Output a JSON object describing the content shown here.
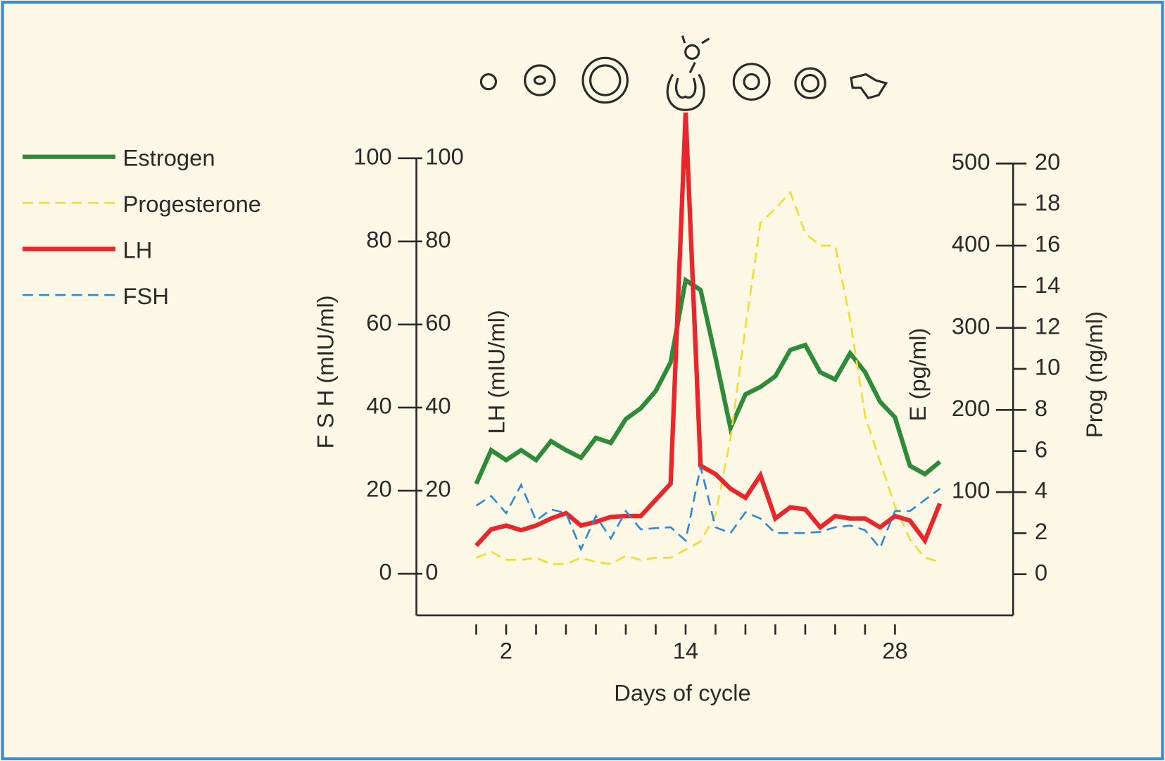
{
  "chart_data": {
    "type": "line",
    "xlabel": "Days of cycle",
    "x": [
      0,
      1,
      2,
      3,
      4,
      5,
      6,
      7,
      8,
      9,
      10,
      11,
      12,
      13,
      14,
      15,
      16,
      17,
      18,
      19,
      20,
      21,
      22,
      23,
      24,
      25,
      26,
      27,
      28,
      29,
      30,
      31
    ],
    "xlim": [
      -4,
      36
    ],
    "xticks": [
      2,
      14,
      28
    ],
    "xminor": [
      0,
      4,
      6,
      8,
      10,
      12,
      16,
      18,
      20,
      22,
      24,
      26
    ],
    "ylabel": "F S H (mIU/ml)",
    "ylim": [
      -10,
      100
    ],
    "yticks": [
      0,
      20,
      40,
      60,
      80,
      100
    ],
    "y2label": "LH (mIU/ml)",
    "y2lim": [
      -10,
      100
    ],
    "y2ticks": [
      0,
      20,
      40,
      60,
      80,
      100
    ],
    "y3label": "E (pg/ml)",
    "y3lim": [
      -50,
      500
    ],
    "y3ticks": [
      100,
      200,
      300,
      400,
      500
    ],
    "y4label": "Prog (ng/ml)",
    "y4lim": [
      -2,
      20
    ],
    "y4ticks": [
      0,
      2,
      4,
      6,
      8,
      10,
      12,
      14,
      16,
      18,
      20
    ],
    "legend": "left",
    "series": [
      {
        "name": "Estrogen",
        "color": "#2e8b3a",
        "dash": false,
        "axis": "y3",
        "values": [
          110,
          151,
          139,
          151,
          139,
          162,
          151,
          142,
          166,
          160,
          189,
          202,
          223,
          258,
          358,
          346,
          264,
          178,
          219,
          228,
          241,
          273,
          279,
          246,
          237,
          269,
          246,
          210,
          191,
          132,
          122,
          137
        ]
      },
      {
        "name": "Progesterone",
        "color": "#f2dc2e",
        "dash": true,
        "axis": "y4",
        "values": [
          0.8,
          1.1,
          0.7,
          0.7,
          0.8,
          0.5,
          0.5,
          0.8,
          0.6,
          0.5,
          0.9,
          0.7,
          0.8,
          0.8,
          1.2,
          1.6,
          2.9,
          6.6,
          12,
          17.1,
          17.8,
          18.6,
          16.6,
          16,
          16,
          12.4,
          7.7,
          5.5,
          3.3,
          1.7,
          0.8,
          0.6
        ]
      },
      {
        "name": "LH",
        "color": "#e8262b",
        "dash": false,
        "axis": "y2",
        "values": [
          6.8,
          10.7,
          11.6,
          10.5,
          11.6,
          13.3,
          14.6,
          11.6,
          12.5,
          13.7,
          13.9,
          13.9,
          17.8,
          21.7,
          111,
          26,
          24,
          20.5,
          18.3,
          23.7,
          13.3,
          16,
          15.5,
          11.2,
          13.9,
          13.3,
          13.3,
          11.2,
          13.9,
          12.8,
          8,
          16.9
        ]
      },
      {
        "name": "FSH",
        "color": "#2a8ad8",
        "dash": true,
        "axis": "y",
        "values": [
          16.4,
          18.7,
          14.6,
          21.4,
          12.8,
          15.5,
          14.6,
          5.9,
          13.9,
          8.5,
          15.1,
          10.7,
          11,
          11.2,
          8,
          25.8,
          11.2,
          9.8,
          14.8,
          13.3,
          9.8,
          9.8,
          9.8,
          10.1,
          11.2,
          11.6,
          10.5,
          6.2,
          15.1,
          15.1,
          17.8,
          20.5
        ]
      }
    ]
  }
}
